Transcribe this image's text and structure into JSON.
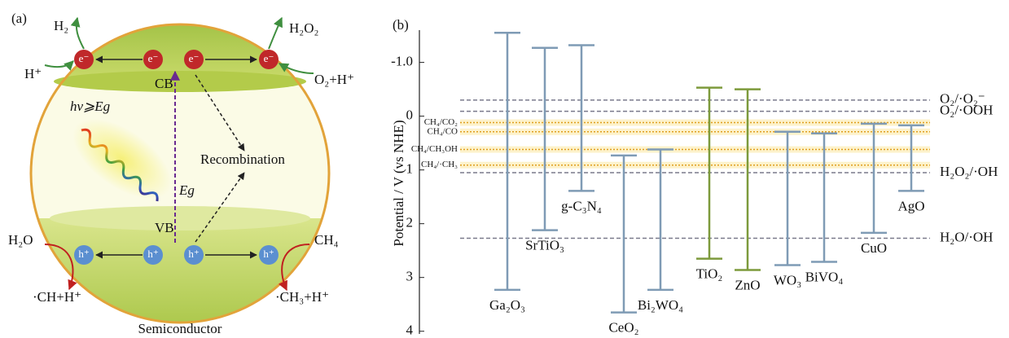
{
  "panel_a": {
    "label": "(a)",
    "caption": "Semiconductor",
    "cb": "CB",
    "vb": "VB",
    "electrons": [
      "e⁻",
      "e⁻",
      "e⁻",
      "e⁻"
    ],
    "holes": [
      "h⁺",
      "h⁺",
      "h⁺",
      "h⁺"
    ],
    "h2": "H₂",
    "h2o2": "H₂O₂",
    "h_plus": "H⁺",
    "o2_h": "O₂+H⁺",
    "excitation": "hv⩾Eg",
    "bandgap": "Eg",
    "recombination": "Recombination",
    "h2o": "H₂O",
    "ch4": "CH₄",
    "ch_h": "·CH+H⁺",
    "ch3_h": "·CH₃+H⁺"
  },
  "chart_data": {
    "type": "band",
    "label": "(b)",
    "ylabel": "Potential / V (vs NHE)",
    "ylim": [
      -1.6,
      4.05
    ],
    "inverted": true,
    "yticks": [
      {
        "value": -1,
        "label": "-1.0"
      },
      0,
      1,
      2,
      3,
      4
    ],
    "categories": [
      "Ga₂O₃",
      "SrTiO₃",
      "g-C₃N₄",
      "CeO₂",
      "Bi₂WO₄",
      "TiO₂",
      "ZnO",
      "WO₃",
      "BiVO₄",
      "CuO",
      "AgO"
    ],
    "cb": [
      -1.55,
      -1.27,
      -1.32,
      0.73,
      0.62,
      -0.53,
      -0.5,
      0.29,
      0.32,
      0.14,
      0.17
    ],
    "vb": [
      3.23,
      2.12,
      1.39,
      3.65,
      3.23,
      2.65,
      2.86,
      2.77,
      2.71,
      2.17,
      1.39
    ],
    "colors": [
      "#7f9bb5",
      "#7f9bb5",
      "#7f9bb5",
      "#7f9bb5",
      "#7f9bb5",
      "#7d9a3c",
      "#7d9a3c",
      "#7f9bb5",
      "#7f9bb5",
      "#7f9bb5",
      "#7f9bb5"
    ],
    "label_colors": [
      "#7a85ad",
      "#7a85ad",
      "#7a85ad",
      "#7a85ad",
      "#7a85ad",
      "#6f8f2a",
      "#6f8f2a",
      "#7a85ad",
      "#7a85ad",
      "#7a85ad",
      "#7a85ad"
    ],
    "redox_lines": [
      {
        "label": "O₂/·O₂⁻",
        "value": -0.3,
        "side": "right",
        "color": "#7a7a8c"
      },
      {
        "label": "O₂/·OOH",
        "value": -0.09,
        "side": "right",
        "color": "#7a7a8c"
      },
      {
        "label": "CH₄/CO₂",
        "value": 0.12,
        "side": "left",
        "color": "#e0a020"
      },
      {
        "label": "CH₄/CO",
        "value": 0.29,
        "side": "left",
        "color": "#e0a020"
      },
      {
        "label": "CH₄/CH₃OH",
        "value": 0.62,
        "side": "left",
        "color": "#e0a020"
      },
      {
        "label": "CH₄/·CH₃",
        "value": 0.91,
        "side": "left",
        "color": "#e0a020"
      },
      {
        "label": "H₂O₂/·OH",
        "value": 1.05,
        "side": "right",
        "color": "#7a7a8c"
      },
      {
        "label": "H₂O/·OH",
        "value": 2.27,
        "side": "right",
        "color": "#7a7a8c"
      }
    ]
  }
}
